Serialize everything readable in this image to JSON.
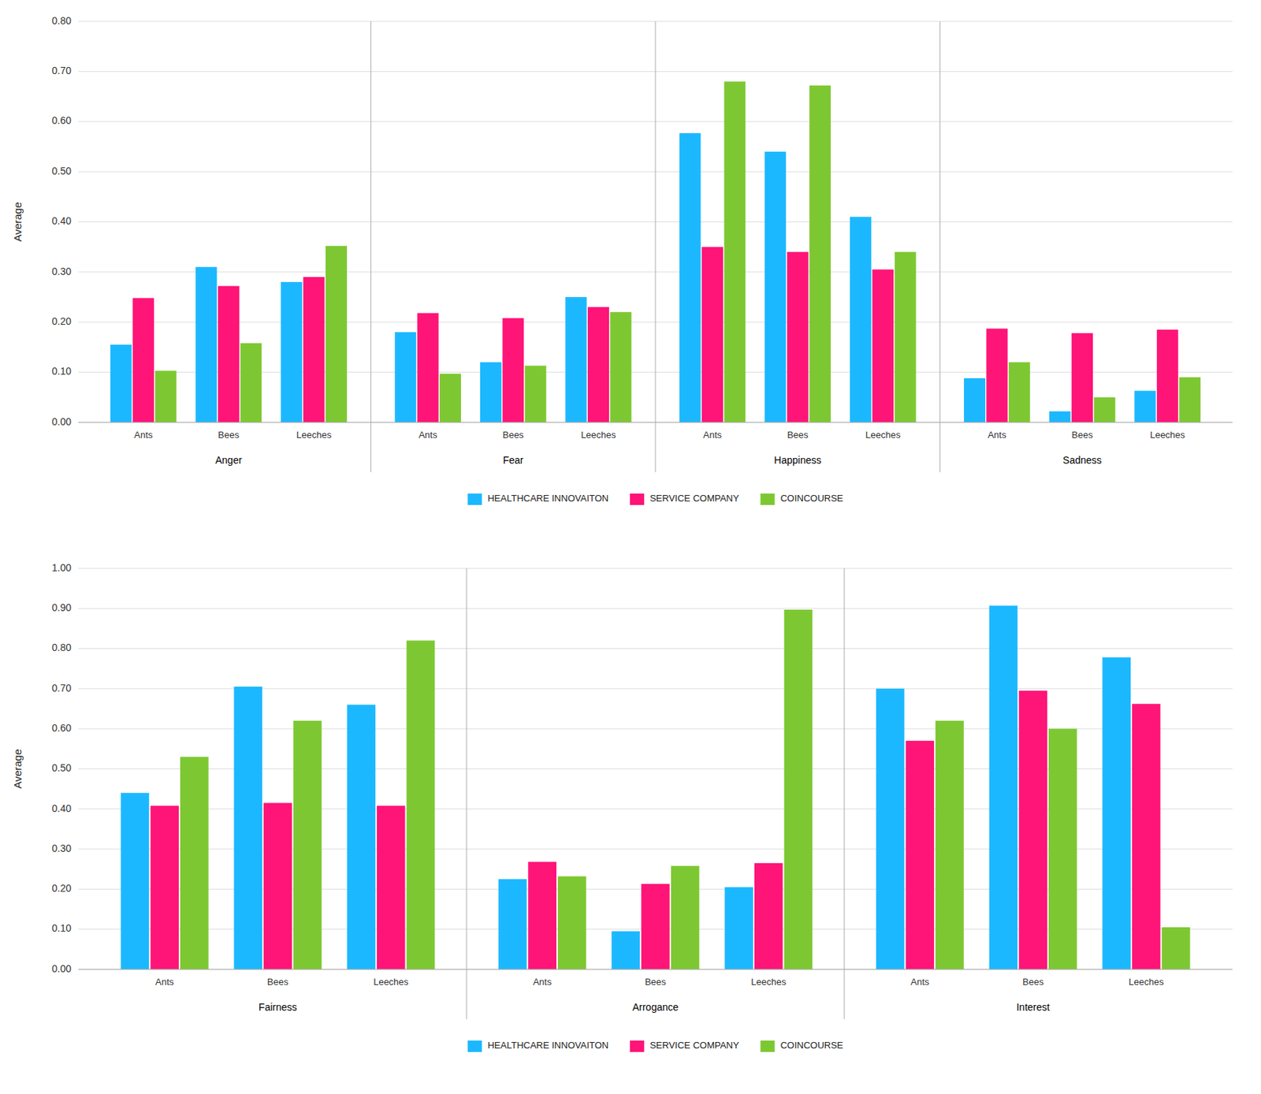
{
  "chart_data": [
    {
      "type": "bar",
      "ylabel": "Average",
      "categories": [
        "Ants",
        "Bees",
        "Leeches",
        "Ants",
        "Bees",
        "Leeches",
        "Ants",
        "Bees",
        "Leeches",
        "Ants",
        "Bees",
        "Leeches"
      ],
      "annotations": [
        "Anger",
        "Fear",
        "Happiness",
        "Sadness"
      ],
      "series": [
        {
          "name": "HEALTHCARE INNOVAITON",
          "color": "#1CB8FF",
          "values": [
            0.155,
            0.31,
            0.28,
            0.18,
            0.12,
            0.25,
            0.577,
            0.54,
            0.41,
            0.088,
            0.022,
            0.063
          ]
        },
        {
          "name": "SERVICE COMPANY",
          "color": "#FF1477",
          "values": [
            0.248,
            0.272,
            0.29,
            0.218,
            0.208,
            0.23,
            0.35,
            0.34,
            0.305,
            0.187,
            0.178,
            0.185
          ]
        },
        {
          "name": "COINCOURSE",
          "color": "#7DC832",
          "values": [
            0.103,
            0.158,
            0.352,
            0.097,
            0.113,
            0.22,
            0.68,
            0.672,
            0.34,
            0.12,
            0.05,
            0.09
          ]
        }
      ],
      "ylim": [
        0.0,
        0.8
      ],
      "yticks": [
        {
          "value": 0.0,
          "label": "0.00"
        },
        {
          "value": 0.1,
          "label": "0.10"
        },
        {
          "value": 0.2,
          "label": "0.20"
        },
        {
          "value": 0.3,
          "label": "0.30"
        },
        {
          "value": 0.4,
          "label": "0.40"
        },
        {
          "value": 0.5,
          "label": "0.50"
        },
        {
          "value": 0.6,
          "label": "0.60"
        },
        {
          "value": 0.7,
          "label": "0.70"
        },
        {
          "value": 0.8,
          "label": "0.80"
        }
      ],
      "grid": true,
      "legend": "bottom"
    },
    {
      "type": "bar",
      "ylabel": "Average",
      "categories": [
        "Ants",
        "Bees",
        "Leeches",
        "Ants",
        "Bees",
        "Leeches",
        "Ants",
        "Bees",
        "Leeches"
      ],
      "annotations": [
        "Fairness",
        "Arrogance",
        "Interest"
      ],
      "series": [
        {
          "name": "HEALTHCARE INNOVAITON",
          "color": "#1CB8FF",
          "values": [
            0.44,
            0.705,
            0.66,
            0.225,
            0.095,
            0.205,
            0.7,
            0.907,
            0.778
          ]
        },
        {
          "name": "SERVICE COMPANY",
          "color": "#FF1477",
          "values": [
            0.408,
            0.415,
            0.408,
            0.268,
            0.213,
            0.265,
            0.57,
            0.695,
            0.662
          ]
        },
        {
          "name": "COINCOURSE",
          "color": "#7DC832",
          "values": [
            0.53,
            0.62,
            0.82,
            0.232,
            0.258,
            0.897,
            0.62,
            0.6,
            0.105
          ]
        }
      ],
      "ylim": [
        0.0,
        1.0
      ],
      "yticks": [
        {
          "value": 0.0,
          "label": "0.00"
        },
        {
          "value": 0.1,
          "label": "0.10"
        },
        {
          "value": 0.2,
          "label": "0.20"
        },
        {
          "value": 0.3,
          "label": "0.30"
        },
        {
          "value": 0.4,
          "label": "0.40"
        },
        {
          "value": 0.5,
          "label": "0.50"
        },
        {
          "value": 0.6,
          "label": "0.60"
        },
        {
          "value": 0.7,
          "label": "0.70"
        },
        {
          "value": 0.8,
          "label": "0.80"
        },
        {
          "value": 0.9,
          "label": "0.90"
        },
        {
          "value": 1.0,
          "label": "1.00"
        }
      ],
      "grid": true,
      "legend": "bottom"
    }
  ]
}
